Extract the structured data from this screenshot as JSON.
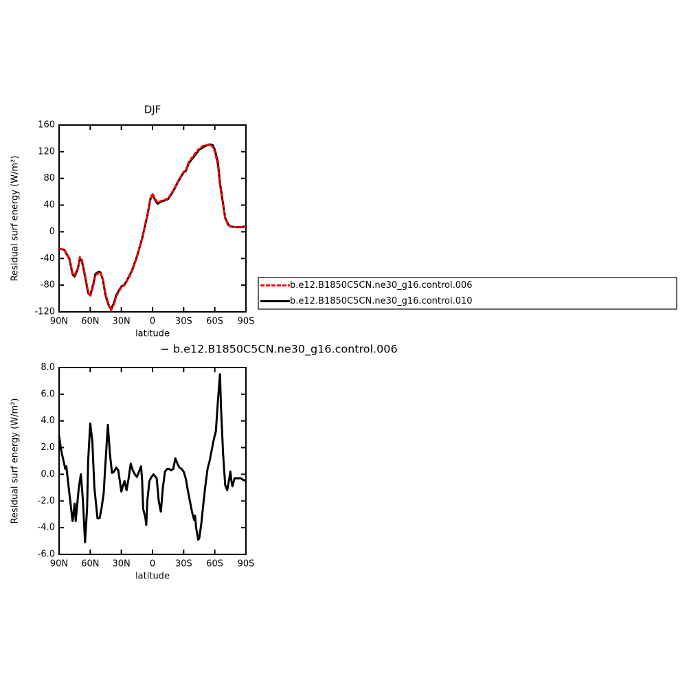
{
  "chart_data": [
    {
      "type": "line",
      "title": "DJF",
      "x_label": "latitude",
      "y_label": "Residual surf energy (W/m²)",
      "x": [
        90,
        85,
        80,
        77,
        75,
        72,
        70,
        68,
        65,
        62,
        60,
        57,
        55,
        52,
        50,
        48,
        45,
        42,
        40,
        37,
        35,
        32,
        30,
        27,
        25,
        20,
        15,
        10,
        5,
        2,
        0,
        -3,
        -5,
        -8,
        -10,
        -15,
        -20,
        -25,
        -30,
        -32,
        -35,
        -40,
        -45,
        -50,
        -55,
        -58,
        -60,
        -63,
        -65,
        -68,
        -70,
        -73,
        -75,
        -80,
        -85,
        -90
      ],
      "series": [
        {
          "name": "b.e12.B1850C5CN.ne30_g16.control.006",
          "color": "#ff0000",
          "line_style": "dashed",
          "values": [
            -25,
            -27,
            -40,
            -62,
            -65,
            -55,
            -38,
            -42,
            -65,
            -90,
            -97,
            -80,
            -65,
            -62,
            -62,
            -70,
            -95,
            -110,
            -118,
            -108,
            -97,
            -88,
            -83,
            -80,
            -75,
            -60,
            -38,
            -10,
            25,
            50,
            57,
            48,
            44,
            46,
            47,
            50,
            62,
            77,
            90,
            92,
            105,
            115,
            125,
            130,
            130,
            128,
            120,
            100,
            70,
            40,
            20,
            10,
            8,
            7,
            7,
            8
          ]
        },
        {
          "name": "b.e12.B1850C5CN.ne30_g16.control.010",
          "color": "#000000",
          "line_style": "solid",
          "values": [
            -25,
            -27,
            -41,
            -64,
            -67,
            -56,
            -40,
            -44,
            -67,
            -92,
            -95,
            -78,
            -63,
            -60,
            -61,
            -71,
            -97,
            -111,
            -116,
            -106,
            -95,
            -87,
            -82,
            -79,
            -74,
            -59,
            -37,
            -10,
            24,
            49,
            56,
            46,
            42,
            45,
            46,
            49,
            61,
            76,
            89,
            91,
            103,
            113,
            123,
            128,
            131,
            130,
            123,
            104,
            73,
            42,
            21,
            11,
            8,
            7,
            7,
            8
          ]
        }
      ],
      "xlim": [
        90,
        -90
      ],
      "xticks": [
        {
          "value": 90,
          "label": "90N"
        },
        {
          "value": 60,
          "label": "60N"
        },
        {
          "value": 30,
          "label": "30N"
        },
        0,
        {
          "value": -30,
          "label": "30S"
        },
        {
          "value": -60,
          "label": "60S"
        },
        {
          "value": -90,
          "label": "90S"
        }
      ],
      "ylim": [
        -120,
        160
      ],
      "yticks": [
        -120,
        -80,
        -40,
        0,
        40,
        80,
        120,
        160
      ],
      "legend_position": "right"
    },
    {
      "type": "line",
      "title": "− b.e12.B1850C5CN.ne30_g16.control.006",
      "x_label": "latitude",
      "y_label": "Residual surf energy (W/m²)",
      "x": [
        90,
        88,
        84,
        83,
        80,
        77,
        75,
        74,
        71,
        69,
        67,
        65,
        63,
        62,
        60,
        58,
        56,
        53,
        51,
        49,
        47,
        46,
        43,
        41,
        39,
        37,
        35,
        33,
        30,
        29,
        27,
        25,
        23,
        21,
        19,
        17,
        15,
        13,
        11,
        10,
        9,
        7,
        6,
        5,
        3,
        1,
        -1,
        -4,
        -6,
        -8,
        -10,
        -12,
        -14,
        -16,
        -18,
        -20,
        -22,
        -24,
        -26,
        -28,
        -30,
        -32,
        -34,
        -36,
        -38,
        -40,
        -41,
        -42,
        -44,
        -45,
        -47,
        -49,
        -51,
        -53,
        -55,
        -57,
        -59,
        -61,
        -63,
        -65,
        -66,
        -68,
        -70,
        -72,
        -74,
        -75,
        -76,
        -77,
        -79,
        -82,
        -85,
        -87,
        -90
      ],
      "values": [
        2.9,
        1.8,
        0.4,
        0.6,
        -1.5,
        -3.5,
        -2.2,
        -3.5,
        -1.0,
        0.0,
        -2.0,
        -5.1,
        -2.5,
        1.0,
        3.8,
        2.5,
        -1.0,
        -3.3,
        -3.3,
        -2.5,
        -1.4,
        0.0,
        3.7,
        1.5,
        0.1,
        0.2,
        0.5,
        0.3,
        -1.3,
        -1.0,
        -0.5,
        -1.2,
        -0.3,
        0.8,
        0.3,
        0.0,
        -0.2,
        0.2,
        0.6,
        -0.5,
        -2.6,
        -3.2,
        -3.8,
        -2.0,
        -0.5,
        -0.2,
        0.0,
        -0.3,
        -2.0,
        -2.8,
        -1.0,
        0.2,
        0.4,
        0.4,
        0.3,
        0.4,
        1.2,
        0.8,
        0.5,
        0.4,
        0.2,
        -0.3,
        -1.2,
        -2.0,
        -2.8,
        -3.4,
        -3.1,
        -4.0,
        -4.9,
        -4.8,
        -3.7,
        -2.2,
        -0.8,
        0.4,
        1.0,
        1.8,
        2.6,
        3.2,
        5.5,
        7.5,
        5.0,
        1.5,
        -0.8,
        -1.2,
        -0.3,
        0.2,
        -0.5,
        -0.9,
        -0.3,
        -0.3,
        -0.3,
        -0.4,
        -0.5
      ],
      "color": "#000000",
      "line_style": "solid",
      "xlim": [
        90,
        -90
      ],
      "xticks": [
        {
          "value": 90,
          "label": "90N"
        },
        {
          "value": 60,
          "label": "60N"
        },
        {
          "value": 30,
          "label": "30N"
        },
        0,
        {
          "value": -30,
          "label": "30S"
        },
        {
          "value": -60,
          "label": "60S"
        },
        {
          "value": -90,
          "label": "90S"
        }
      ],
      "ylim": [
        -6,
        8
      ],
      "yticks": [
        {
          "value": -6,
          "label": "-6.0"
        },
        {
          "value": -4,
          "label": "-4.0"
        },
        {
          "value": -2,
          "label": "-2.0"
        },
        {
          "value": 0,
          "label": "0.0"
        },
        {
          "value": 2,
          "label": "2.0"
        },
        {
          "value": 4,
          "label": "4.0"
        },
        {
          "value": 6,
          "label": "6.0"
        },
        {
          "value": 8,
          "label": "8.0"
        }
      ]
    }
  ]
}
